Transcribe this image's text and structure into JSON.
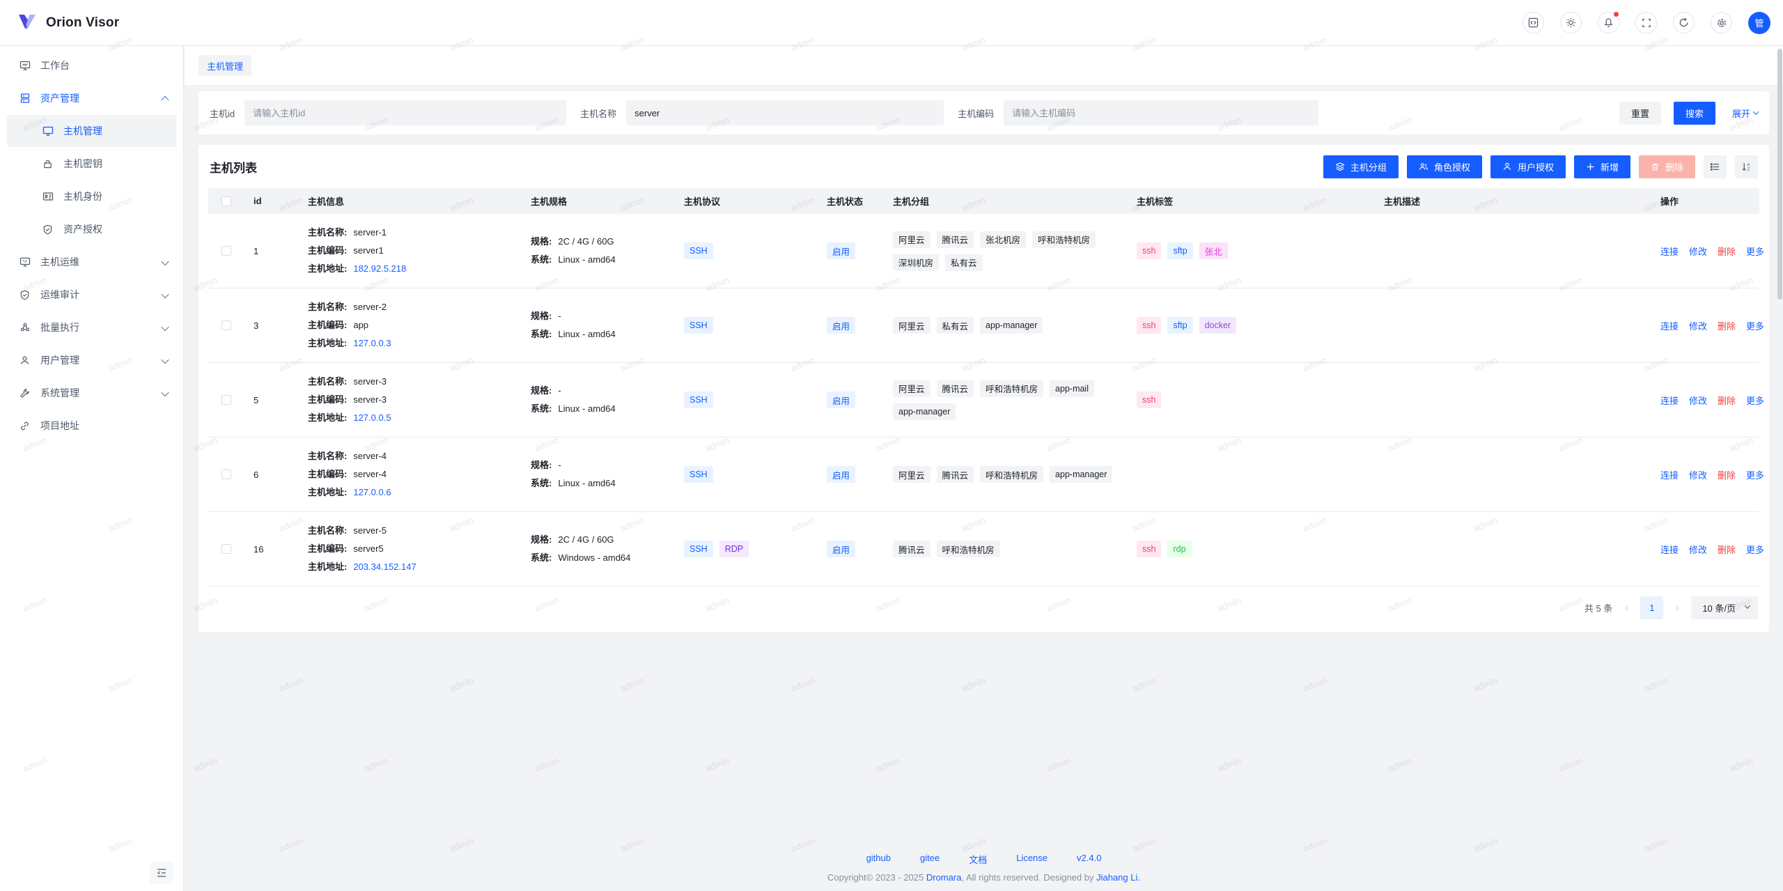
{
  "header": {
    "brand": "Orion Visor",
    "icons": [
      "code-icon",
      "theme-icon",
      "notifications-icon",
      "fullscreen-icon",
      "refresh-icon",
      "settings-icon"
    ],
    "avatar_text": "管"
  },
  "sidebar": {
    "items": [
      {
        "label": "工作台",
        "icon": "workbench-icon"
      },
      {
        "label": "资产管理",
        "icon": "assets-icon",
        "expanded": true,
        "children": [
          {
            "label": "主机管理",
            "icon": "host-monitor-icon",
            "selected": true
          },
          {
            "label": "主机密钥",
            "icon": "lock-icon"
          },
          {
            "label": "主机身份",
            "icon": "id-card-icon"
          },
          {
            "label": "资产授权",
            "icon": "shield-check-icon"
          }
        ]
      },
      {
        "label": "主机运维",
        "icon": "monitor-icon"
      },
      {
        "label": "运维审计",
        "icon": "shield-icon"
      },
      {
        "label": "批量执行",
        "icon": "cluster-icon"
      },
      {
        "label": "用户管理",
        "icon": "user-icon"
      },
      {
        "label": "系统管理",
        "icon": "wrench-icon"
      },
      {
        "label": "项目地址",
        "icon": "link-icon"
      }
    ]
  },
  "breadcrumb": {
    "tab": "主机管理"
  },
  "search": {
    "fields": [
      {
        "label": "主机id",
        "placeholder": "请输入主机id",
        "value": ""
      },
      {
        "label": "主机名称",
        "placeholder": "",
        "value": "server"
      },
      {
        "label": "主机编码",
        "placeholder": "请输入主机编码",
        "value": ""
      }
    ],
    "reset_label": "重置",
    "search_label": "搜索",
    "expand_label": "展开"
  },
  "table": {
    "title": "主机列表",
    "toolbar": {
      "group_label": "主机分组",
      "role_grant_label": "角色授权",
      "user_grant_label": "用户授权",
      "add_label": "新增",
      "delete_label": "删除"
    },
    "columns": [
      "id",
      "主机信息",
      "主机规格",
      "主机协议",
      "主机状态",
      "主机分组",
      "主机标签",
      "主机描述",
      "操作"
    ],
    "info_labels": {
      "name": "主机名称:",
      "code": "主机编码:",
      "address": "主机地址:"
    },
    "spec_labels": {
      "spec": "规格:",
      "system": "系统:"
    },
    "status_colors": {
      "bg": "#e8f3ff",
      "fg": "#165dff"
    },
    "protocol_colors": {
      "SSH": {
        "bg": "#e8f3ff",
        "fg": "#165dff"
      },
      "RDP": {
        "bg": "#f5e8ff",
        "fg": "#722ed1"
      }
    },
    "actions": [
      {
        "label": "连接",
        "danger": false
      },
      {
        "label": "修改",
        "danger": false
      },
      {
        "label": "删除",
        "danger": true
      },
      {
        "label": "更多",
        "danger": false
      }
    ],
    "rows": [
      {
        "id": "1",
        "name": "server-1",
        "code": "server1",
        "address": "182.92.5.218",
        "spec": "2C / 4G / 60G",
        "system": "Linux - amd64",
        "protocols": [
          "SSH"
        ],
        "status": "启用",
        "groups": [
          "阿里云",
          "腾讯云",
          "张北机房",
          "呼和浩特机房",
          "深圳机房",
          "私有云"
        ],
        "tags": [
          {
            "text": "ssh",
            "bg": "#ffe8f1",
            "fg": "#f5397c"
          },
          {
            "text": "sftp",
            "bg": "#e8f3ff",
            "fg": "#165dff"
          },
          {
            "text": "张北",
            "bg": "#fce1fa",
            "fg": "#e13bd4"
          }
        ],
        "description": ""
      },
      {
        "id": "3",
        "name": "server-2",
        "code": "app",
        "address": "127.0.0.3",
        "spec": "-",
        "system": "Linux - amd64",
        "protocols": [
          "SSH"
        ],
        "status": "启用",
        "groups": [
          "阿里云",
          "私有云",
          "app-manager"
        ],
        "tags": [
          {
            "text": "ssh",
            "bg": "#ffe8f1",
            "fg": "#f5397c"
          },
          {
            "text": "sftp",
            "bg": "#e8f3ff",
            "fg": "#165dff"
          },
          {
            "text": "docker",
            "bg": "#f3e6ff",
            "fg": "#8a4fd8"
          }
        ],
        "description": ""
      },
      {
        "id": "5",
        "name": "server-3",
        "code": "server-3",
        "address": "127.0.0.5",
        "spec": "-",
        "system": "Linux - amd64",
        "protocols": [
          "SSH"
        ],
        "status": "启用",
        "groups": [
          "阿里云",
          "腾讯云",
          "呼和浩特机房",
          "app-mail",
          "app-manager"
        ],
        "tags": [
          {
            "text": "ssh",
            "bg": "#ffe8f1",
            "fg": "#f5397c"
          }
        ],
        "description": ""
      },
      {
        "id": "6",
        "name": "server-4",
        "code": "server-4",
        "address": "127.0.0.6",
        "spec": "-",
        "system": "Linux - amd64",
        "protocols": [
          "SSH"
        ],
        "status": "启用",
        "groups": [
          "阿里云",
          "腾讯云",
          "呼和浩特机房",
          "app-manager"
        ],
        "tags": [],
        "description": ""
      },
      {
        "id": "16",
        "name": "server-5",
        "code": "server5",
        "address": "203.34.152.147",
        "spec": "2C / 4G / 60G",
        "system": "Windows - amd64",
        "protocols": [
          "SSH",
          "RDP"
        ],
        "status": "启用",
        "groups": [
          "腾讯云",
          "呼和浩特机房"
        ],
        "tags": [
          {
            "text": "ssh",
            "bg": "#ffe8f1",
            "fg": "#f5397c"
          },
          {
            "text": "rdp",
            "bg": "#e8ffea",
            "fg": "#23c343"
          }
        ],
        "description": ""
      }
    ]
  },
  "pagination": {
    "total_label": "共 5 条",
    "page": "1",
    "page_size_label": "10 条/页"
  },
  "footer": {
    "links": [
      "github",
      "gitee",
      "文档",
      "License",
      "v2.4.0"
    ],
    "copyright_prefix": "Copyright© 2023 - 2025 ",
    "copyright_org": "Dromara",
    "copyright_mid": ", All rights reserved. Designed by ",
    "copyright_author": "Jiahang Li."
  },
  "watermark": {
    "text": "admin"
  },
  "colors": {
    "primary": "#165dff",
    "danger": "#f53f3f",
    "bg": "#f2f3f5",
    "border": "#e5e6eb"
  }
}
